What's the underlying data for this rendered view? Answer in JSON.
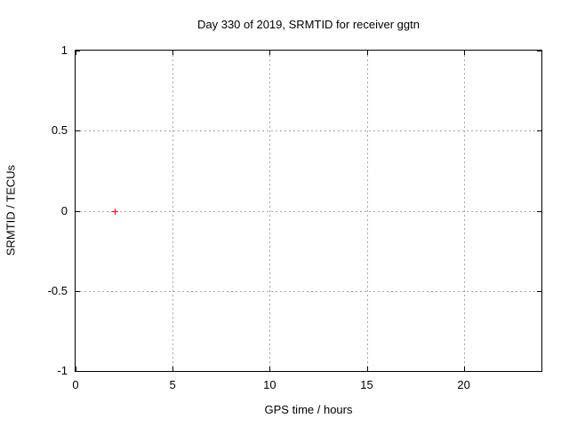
{
  "chart_data": {
    "type": "scatter",
    "title": "Day 330 of 2019, SRMTID for receiver ggtn",
    "xlabel": "GPS time / hours",
    "ylabel": "SRMTID / TECUs",
    "xlim": [
      0,
      24
    ],
    "ylim": [
      -1,
      1
    ],
    "grid": true,
    "legend": "none",
    "xticks": [
      {
        "v": 0,
        "label": "0",
        "grid": false
      },
      {
        "v": 5,
        "label": "5",
        "grid": true
      },
      {
        "v": 10,
        "label": "10",
        "grid": true
      },
      {
        "v": 15,
        "label": "15",
        "grid": true
      },
      {
        "v": 20,
        "label": "20",
        "grid": true
      }
    ],
    "yticks": [
      {
        "v": -1,
        "label": "-1",
        "grid": false
      },
      {
        "v": -0.5,
        "label": "-0.5",
        "grid": true
      },
      {
        "v": 0,
        "label": "0",
        "grid": true
      },
      {
        "v": 0.5,
        "label": "0.5",
        "grid": true
      },
      {
        "v": 1,
        "label": "1",
        "grid": false
      }
    ],
    "series": [
      {
        "name": "SRMTID",
        "marker": "plus",
        "color": "#ff0000",
        "points": [
          {
            "x": 2,
            "y": 0
          }
        ]
      }
    ],
    "colors": {
      "background": "#ffffff",
      "border": "#000000",
      "grid": "#a6a6a6",
      "text": "#000000"
    }
  }
}
